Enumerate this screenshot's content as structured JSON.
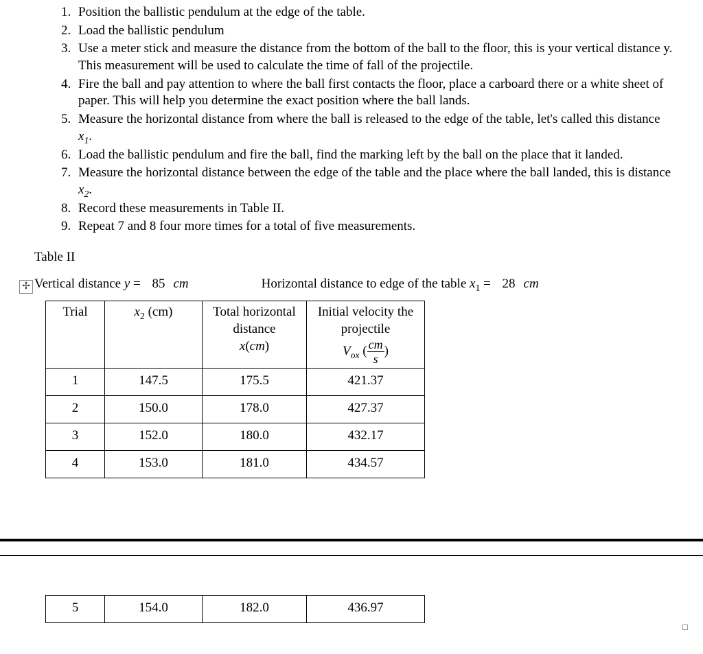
{
  "steps": [
    "Position the ballistic pendulum at the edge of the table.",
    "Load the ballistic pendulum",
    "Use a meter stick and measure the distance from the bottom of the ball to the floor, this is your vertical distance y. This measurement will be used to calculate the time of fall of the projectile.",
    "Fire the ball and pay attention to where the ball first contacts the floor, place a carboard there or a white sheet of paper. This will help you determine the exact position where the ball lands.",
    "Measure the horizontal distance from where the ball is released to the edge of the table, let's called this distance ",
    "Load the ballistic pendulum and fire the ball, find the marking left by the ball on the place that it landed.",
    "Measure the horizontal distance between the edge of the table and the place where the ball landed, this is distance ",
    "Record these measurements in Table II.",
    "Repeat 7 and 8 four more times for a total of five measurements."
  ],
  "x1_label": "x",
  "x1_sub": "1",
  "x2_label": "x",
  "x2_sub": "2",
  "table_label": "Table II",
  "vertical_label_pre": "Vertical distance ",
  "vertical_var": "y",
  "vertical_eq": " = ",
  "vertical_value": "85",
  "unit_cm": "cm",
  "horiz_label_pre": "Horizontal distance to edge of the table ",
  "horiz_var": "x",
  "horiz_sub": "1",
  "horiz_eq": " = ",
  "horiz_value": "28",
  "columns": {
    "c0": "Trial",
    "c1_pre": "x",
    "c1_sub": "2",
    "c1_post": " (cm)",
    "c2_l1": "Total horizontal",
    "c2_l2": "distance",
    "c2_var": "x",
    "c2_unit_open": "(",
    "c2_unit": "cm",
    "c2_unit_close": ")",
    "c3_l1": "Initial velocity the",
    "c3_l2": "projectile",
    "vox_v": "V",
    "vox_sub": "ox",
    "frac_num": "cm",
    "frac_den": "s"
  },
  "rows_upper": [
    {
      "trial": "1",
      "x2": "147.5",
      "x": "175.5",
      "vox": "421.37"
    },
    {
      "trial": "2",
      "x2": "150.0",
      "x": "178.0",
      "vox": "427.37"
    },
    {
      "trial": "3",
      "x2": "152.0",
      "x": "180.0",
      "vox": "432.17"
    },
    {
      "trial": "4",
      "x2": "153.0",
      "x": "181.0",
      "vox": "434.57"
    }
  ],
  "rows_lower": [
    {
      "trial": "5",
      "x2": "154.0",
      "x": "182.0",
      "vox": "436.97"
    }
  ],
  "anchor_glyph": "✢"
}
